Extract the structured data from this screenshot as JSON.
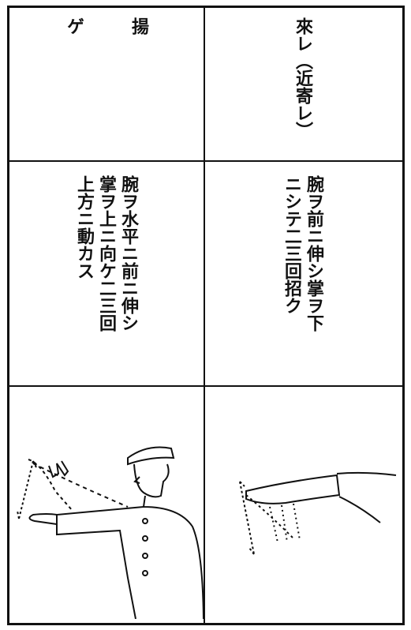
{
  "table": {
    "rows": [
      [
        {
          "lines": [
            "揚",
            "ゲ"
          ]
        },
        {
          "lines": [
            "來レ（近寄レ）"
          ]
        }
      ],
      [
        {
          "lines": [
            "腕ヲ水平ニ前ニ伸シ",
            "掌ヲ上ニ向ケ二三回",
            "上方ニ動カス"
          ]
        },
        {
          "lines": [
            "腕ヲ前ニ伸シ掌ヲ下",
            "ニシテ二三回招ク"
          ]
        }
      ]
    ]
  }
}
